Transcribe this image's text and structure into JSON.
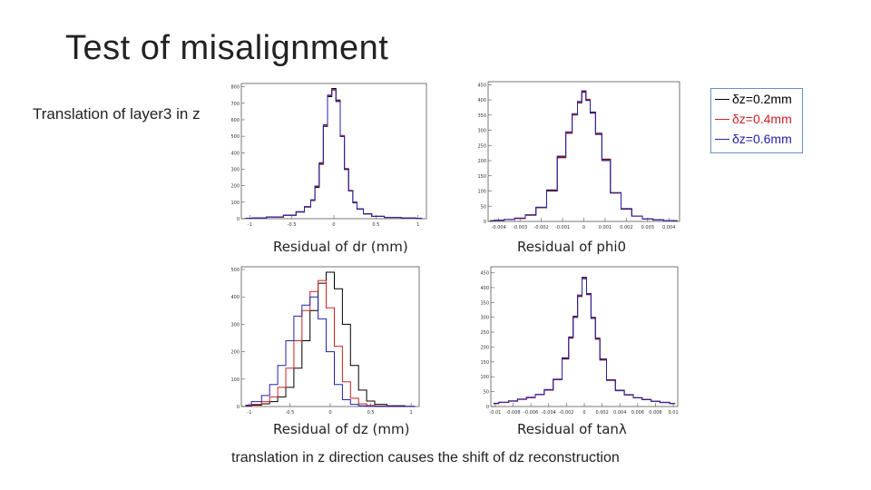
{
  "slide": {
    "title": "Test of misalignment",
    "subtitle": "Translation of layer3 in z",
    "bottom_note": "translation in z direction causes the shift of dz reconstruction"
  },
  "legend": {
    "entries": [
      {
        "label": "δz=0.2mm",
        "color": "#000000"
      },
      {
        "label": "δz=0.4mm",
        "color": "#cc2222"
      },
      {
        "label": "δz=0.6mm",
        "color": "#2222aa"
      }
    ]
  },
  "captions": {
    "dr": "Residual of dr (mm)",
    "phi0": "Residual of phi0",
    "dz": "Residual of dz (mm)",
    "tanl": "Residual of tanλ"
  },
  "colors": {
    "black": "#000000",
    "red": "#cc2222",
    "blue": "#2222aa",
    "frame": "#555555"
  },
  "chart_data": [
    {
      "type": "line",
      "id": "dr",
      "xlabel": "Residual of dr (mm)",
      "xlim": [
        -1.1,
        1.1
      ],
      "ylim": [
        0,
        820
      ],
      "xticks": [
        "-1",
        "-0.5",
        "0",
        "0.5",
        "1"
      ],
      "yticks": [
        "0",
        "100",
        "200",
        "300",
        "400",
        "500",
        "600",
        "700",
        "800"
      ],
      "x": [
        -1.05,
        -0.9,
        -0.7,
        -0.5,
        -0.4,
        -0.3,
        -0.25,
        -0.2,
        -0.15,
        -0.1,
        -0.05,
        0,
        0.05,
        0.1,
        0.15,
        0.2,
        0.25,
        0.3,
        0.4,
        0.5,
        0.7,
        0.9,
        1.05
      ],
      "series": [
        {
          "color": "#000000",
          "values": [
            3,
            5,
            10,
            20,
            40,
            70,
            110,
            190,
            330,
            560,
            740,
            790,
            720,
            500,
            300,
            170,
            100,
            60,
            30,
            15,
            8,
            4,
            2
          ]
        },
        {
          "color": "#cc2222",
          "values": [
            3,
            5,
            10,
            21,
            42,
            72,
            112,
            195,
            335,
            565,
            745,
            785,
            715,
            505,
            305,
            172,
            98,
            58,
            29,
            14,
            8,
            4,
            2
          ]
        },
        {
          "color": "#2222aa",
          "values": [
            3,
            5,
            11,
            22,
            43,
            74,
            115,
            198,
            340,
            570,
            750,
            780,
            710,
            498,
            298,
            168,
            96,
            57,
            28,
            14,
            7,
            4,
            2
          ]
        }
      ]
    },
    {
      "type": "line",
      "id": "phi0",
      "xlabel": "Residual of phi0",
      "xlim": [
        -0.0045,
        0.0045
      ],
      "ylim": [
        0,
        460
      ],
      "xticks": [
        "-0.004",
        "-0.003",
        "-0.002",
        "-0.001",
        "0",
        "0.001",
        "0.002",
        "0.003",
        "0.004"
      ],
      "yticks": [
        "0",
        "50",
        "100",
        "150",
        "200",
        "250",
        "300",
        "350",
        "400",
        "450"
      ],
      "x": [
        -0.0044,
        -0.004,
        -0.0035,
        -0.003,
        -0.0025,
        -0.002,
        -0.0015,
        -0.001,
        -0.0007,
        -0.0004,
        -0.0002,
        0,
        0.0002,
        0.0004,
        0.0007,
        0.001,
        0.0015,
        0.002,
        0.0025,
        0.003,
        0.0035,
        0.004,
        0.0044
      ],
      "series": [
        {
          "color": "#000000",
          "values": [
            2,
            4,
            6,
            10,
            20,
            45,
            100,
            210,
            290,
            350,
            390,
            425,
            400,
            360,
            290,
            205,
            95,
            42,
            18,
            8,
            5,
            3,
            2
          ]
        },
        {
          "color": "#cc2222",
          "values": [
            2,
            4,
            6,
            10,
            21,
            46,
            102,
            212,
            292,
            352,
            392,
            428,
            402,
            358,
            288,
            203,
            94,
            41,
            18,
            8,
            5,
            3,
            2
          ]
        },
        {
          "color": "#2222aa",
          "values": [
            2,
            4,
            7,
            11,
            22,
            47,
            104,
            215,
            295,
            355,
            395,
            430,
            398,
            356,
            286,
            200,
            93,
            40,
            17,
            8,
            5,
            3,
            2
          ]
        }
      ]
    },
    {
      "type": "line",
      "id": "dz",
      "xlabel": "Residual of dz (mm)",
      "xlim": [
        -1.1,
        1.1
      ],
      "ylim": [
        0,
        510
      ],
      "xticks": [
        "-1",
        "-0.5",
        "0",
        "0.5",
        "1"
      ],
      "yticks": [
        "0",
        "100",
        "200",
        "300",
        "400",
        "500"
      ],
      "x": [
        -1.05,
        -0.9,
        -0.8,
        -0.7,
        -0.6,
        -0.5,
        -0.4,
        -0.3,
        -0.2,
        -0.1,
        0,
        0.1,
        0.2,
        0.3,
        0.4,
        0.5,
        0.6,
        0.8,
        1.05
      ],
      "series": [
        {
          "color": "#000000",
          "values": [
            2,
            5,
            10,
            18,
            35,
            70,
            140,
            240,
            350,
            450,
            490,
            430,
            300,
            150,
            60,
            20,
            8,
            3,
            1
          ]
        },
        {
          "color": "#cc2222",
          "values": [
            3,
            8,
            18,
            35,
            70,
            140,
            240,
            350,
            420,
            460,
            360,
            220,
            90,
            30,
            10,
            4,
            2,
            1,
            0
          ]
        },
        {
          "color": "#2222aa",
          "values": [
            5,
            18,
            40,
            80,
            150,
            240,
            330,
            370,
            400,
            320,
            200,
            80,
            25,
            8,
            3,
            1,
            0,
            0,
            0
          ]
        }
      ]
    },
    {
      "type": "line",
      "id": "tanl",
      "xlabel": "Residual of tanλ",
      "xlim": [
        -0.0105,
        0.0105
      ],
      "ylim": [
        0,
        470
      ],
      "xticks": [
        "-0.01",
        "-0.008",
        "-0.006",
        "-0.004",
        "-0.002",
        "0",
        "0.002",
        "0.004",
        "0.006",
        "0.008",
        "0.01"
      ],
      "yticks": [
        "0",
        "50",
        "100",
        "150",
        "200",
        "250",
        "300",
        "350",
        "400",
        "450"
      ],
      "x": [
        -0.0102,
        -0.009,
        -0.008,
        -0.007,
        -0.006,
        -0.005,
        -0.004,
        -0.003,
        -0.002,
        -0.0015,
        -0.001,
        -0.0005,
        0,
        0.0005,
        0.001,
        0.0015,
        0.002,
        0.003,
        0.004,
        0.005,
        0.006,
        0.007,
        0.008,
        0.009,
        0.0102
      ],
      "series": [
        {
          "color": "#000000",
          "values": [
            10,
            14,
            18,
            24,
            30,
            40,
            55,
            90,
            160,
            230,
            300,
            370,
            430,
            380,
            300,
            230,
            160,
            90,
            55,
            40,
            30,
            24,
            18,
            14,
            10
          ]
        },
        {
          "color": "#cc2222",
          "values": [
            10,
            14,
            18,
            24,
            30,
            40,
            56,
            91,
            162,
            232,
            302,
            372,
            432,
            378,
            298,
            228,
            158,
            89,
            54,
            39,
            30,
            24,
            18,
            14,
            10
          ]
        },
        {
          "color": "#2222aa",
          "values": [
            11,
            14,
            19,
            25,
            31,
            41,
            57,
            92,
            164,
            234,
            304,
            375,
            435,
            376,
            296,
            226,
            156,
            88,
            53,
            39,
            29,
            23,
            17,
            13,
            10
          ]
        }
      ]
    }
  ]
}
